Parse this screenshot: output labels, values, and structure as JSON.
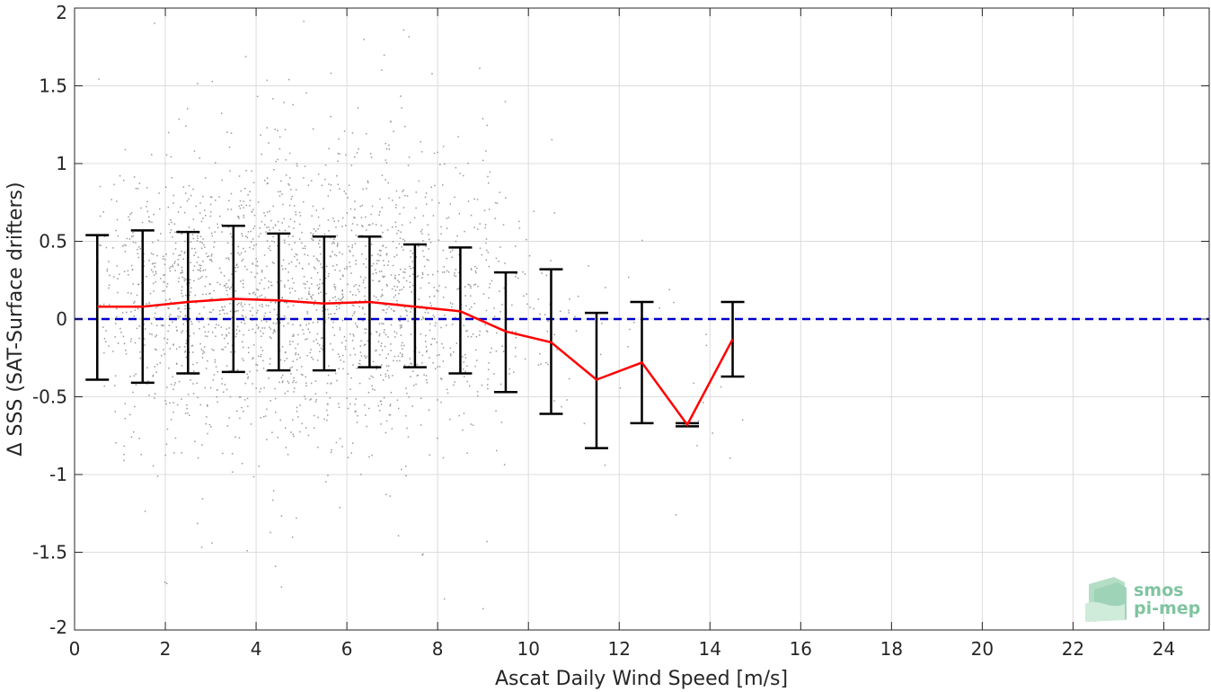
{
  "chart_data": {
    "type": "scatter",
    "xlabel": "Ascat Daily Wind Speed [m/s]",
    "ylabel": "Δ SSS (SAT-Surface drifters)",
    "xlim": [
      0,
      25
    ],
    "ylim": [
      -2,
      2
    ],
    "xticks": [
      0,
      2,
      4,
      6,
      8,
      10,
      12,
      14,
      16,
      18,
      20,
      22,
      24
    ],
    "xtick_labels": [
      "0",
      "2",
      "4",
      "6",
      "8",
      "10",
      "12",
      "14",
      "16",
      "18",
      "20",
      "22",
      "24"
    ],
    "yticks": [
      2,
      1.5,
      1,
      0.5,
      0,
      -0.5,
      -1,
      -1.5,
      -2
    ],
    "ytick_labels": [
      "2",
      "1.5",
      "1",
      "0.5",
      "0",
      "-0.5",
      "-1",
      "-1.5",
      "-2"
    ],
    "grid": true,
    "scatter_color": "#808080",
    "mean_line": {
      "color": "#ff0000",
      "x": [
        0.5,
        1.5,
        2.5,
        3.5,
        4.5,
        5.5,
        6.5,
        7.5,
        8.5,
        9.5,
        10.5,
        11.5,
        12.5,
        13.5,
        14.5
      ],
      "y": [
        0.08,
        0.08,
        0.11,
        0.13,
        0.12,
        0.1,
        0.11,
        0.08,
        0.05,
        -0.08,
        -0.15,
        -0.39,
        -0.28,
        -0.68,
        -0.13
      ]
    },
    "error_bars": {
      "color": "#000000",
      "x": [
        0.5,
        1.5,
        2.5,
        3.5,
        4.5,
        5.5,
        6.5,
        7.5,
        8.5,
        9.5,
        10.5,
        11.5,
        12.5,
        13.5,
        14.5
      ],
      "upper": [
        0.54,
        0.57,
        0.56,
        0.6,
        0.55,
        0.53,
        0.53,
        0.48,
        0.46,
        0.3,
        0.32,
        0.04,
        0.11,
        -0.67,
        0.11
      ],
      "lower": [
        -0.39,
        -0.41,
        -0.35,
        -0.34,
        -0.33,
        -0.33,
        -0.31,
        -0.31,
        -0.35,
        -0.47,
        -0.61,
        -0.83,
        -0.67,
        -0.69,
        -0.37
      ]
    },
    "reference_line": {
      "y": 0,
      "color": "#0000cc",
      "style": "dashed"
    }
  },
  "logo": {
    "line1": "smos",
    "line2": "pi-mep",
    "color": "#7fc4a0"
  }
}
